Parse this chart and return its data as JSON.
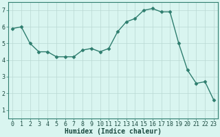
{
  "x": [
    0,
    1,
    2,
    3,
    4,
    5,
    6,
    7,
    8,
    9,
    10,
    11,
    12,
    13,
    14,
    15,
    16,
    17,
    18,
    19,
    20,
    21,
    22,
    23
  ],
  "y": [
    5.9,
    6.0,
    5.0,
    4.5,
    4.5,
    4.2,
    4.2,
    4.2,
    4.6,
    4.7,
    4.5,
    4.7,
    5.7,
    6.3,
    6.5,
    7.0,
    7.1,
    6.9,
    6.9,
    5.0,
    3.4,
    2.6,
    2.7,
    1.6
  ],
  "line_color": "#2e7d6e",
  "marker": "D",
  "markersize": 2.5,
  "linewidth": 1.0,
  "background_color": "#d9f5f0",
  "grid_color": "#b8d8d2",
  "xlabel": "Humidex (Indice chaleur)",
  "xlabel_fontsize": 7,
  "tick_fontsize": 6,
  "ylim": [
    0.5,
    7.5
  ],
  "xlim": [
    -0.5,
    23.5
  ],
  "yticks": [
    1,
    2,
    3,
    4,
    5,
    6,
    7
  ],
  "xticks": [
    0,
    1,
    2,
    3,
    4,
    5,
    6,
    7,
    8,
    9,
    10,
    11,
    12,
    13,
    14,
    15,
    16,
    17,
    18,
    19,
    20,
    21,
    22,
    23
  ]
}
